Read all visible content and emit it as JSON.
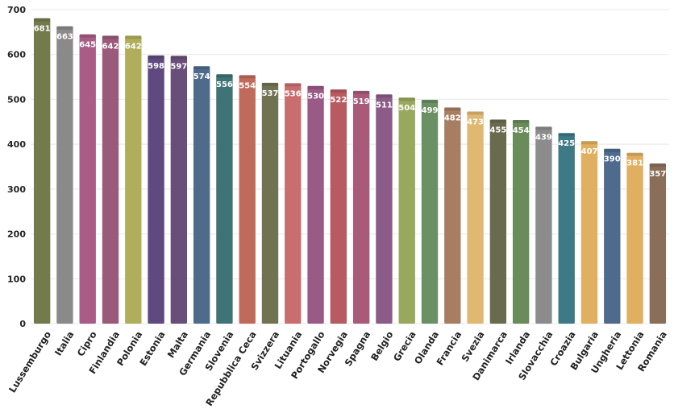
{
  "chart_data": {
    "type": "bar",
    "categories": [
      "Lussemburgo",
      "Italia",
      "Cipro",
      "Finlandia",
      "Polonia",
      "Estonia",
      "Malta",
      "Germania",
      "Slovenia",
      "Repubblica Ceca",
      "Svizzera",
      "Lituania",
      "Portogallo",
      "Norvegia",
      "Spagna",
      "Belgio",
      "Grecia",
      "Olanda",
      "Francia",
      "Svezia",
      "Danimarca",
      "Irlanda",
      "Slovacchia",
      "Croazia",
      "Bulgaria",
      "Ungheria",
      "Lettonia",
      "Romania"
    ],
    "values": [
      681,
      663,
      645,
      642,
      642,
      598,
      597,
      574,
      556,
      554,
      537,
      536,
      530,
      522,
      519,
      511,
      504,
      499,
      482,
      473,
      455,
      454,
      439,
      425,
      407,
      390,
      381,
      357
    ],
    "data_labels": [
      "681",
      "663",
      "645",
      "642",
      "642",
      "598",
      "597",
      "574",
      "556",
      "554",
      "537",
      "536",
      "530",
      "522",
      "519",
      "511",
      "504",
      "499",
      "482",
      "473",
      "455",
      "454",
      "439",
      "425",
      "407",
      "390",
      "381",
      "357"
    ],
    "y_ticks": [
      "0",
      "100",
      "200",
      "300",
      "400",
      "500",
      "600",
      "700"
    ],
    "ylim": [
      0,
      700
    ],
    "grid": true,
    "colors": [
      "#737b4c",
      "#8a8a8a",
      "#a85c86",
      "#9a5a7a",
      "#b0ae5a",
      "#5f4a80",
      "#6a4e7a",
      "#4e6b8c",
      "#3e7475",
      "#c06a5c",
      "#6f7352",
      "#c96e6e",
      "#9a5a86",
      "#b85a62",
      "#a85a78",
      "#8c5c88",
      "#98a85c",
      "#6b9064",
      "#a87e62",
      "#e0b872",
      "#6a6a4e",
      "#6a8c5a",
      "#8c8c8c",
      "#3e7a86",
      "#e0b060",
      "#4e6a8c",
      "#e0b060",
      "#8a6e5a"
    ],
    "title": "",
    "xlabel": "",
    "ylabel": ""
  }
}
